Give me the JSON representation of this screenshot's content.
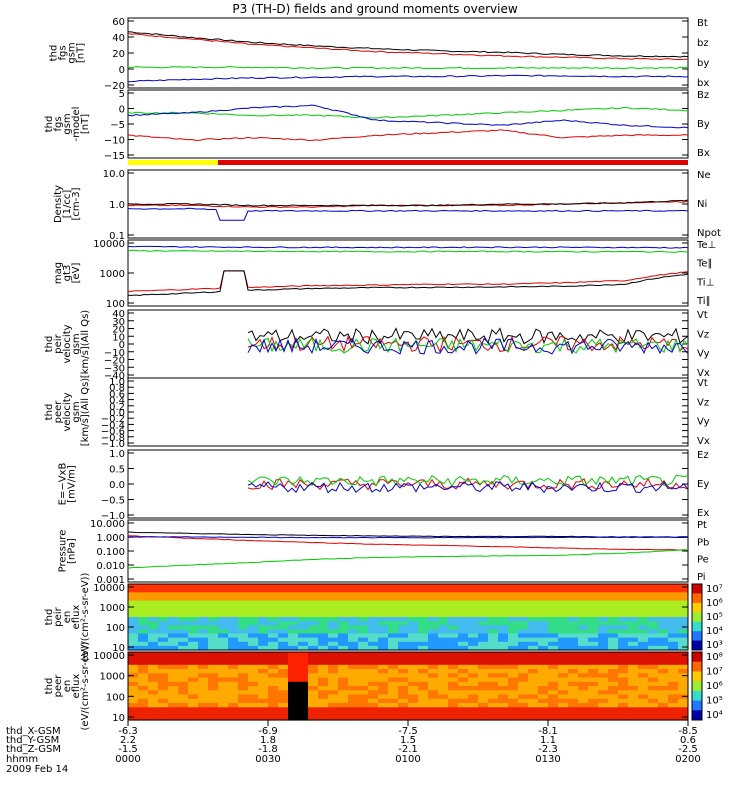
{
  "title": "P3 (TH-D) fields and ground moments overview",
  "colors": {
    "black": "#000000",
    "red": "#e00000",
    "green": "#00cc00",
    "blue": "#0000cc",
    "yellow": "#ffff00"
  },
  "chart_data": [
    {
      "type": "line",
      "ylabel": [
        "thd",
        "fgs",
        "gsm",
        "[nT]"
      ],
      "yticks": [
        "60",
        "40",
        "20",
        "0",
        "−20"
      ],
      "ylim": [
        -25,
        65
      ],
      "series": [
        {
          "name": "Bt",
          "color": "black",
          "values": [
            50,
            42,
            35,
            30,
            26,
            23,
            21,
            18,
            16,
            15
          ]
        },
        {
          "name": "bz",
          "color": "red",
          "values": [
            47,
            40,
            32,
            27,
            22,
            19,
            16,
            14,
            12,
            11
          ]
        },
        {
          "name": "by",
          "color": "green",
          "values": [
            0,
            0,
            0,
            -1,
            -1,
            -1,
            -1,
            -1,
            -1,
            -1
          ]
        },
        {
          "name": "bx",
          "color": "blue",
          "values": [
            -20,
            -17,
            -15,
            -14,
            -13,
            -13,
            -12,
            -12,
            -13,
            -13
          ]
        }
      ]
    },
    {
      "type": "line",
      "ylabel": [
        "thd",
        "fgs",
        "gsm",
        "-model",
        "[nT]"
      ],
      "yticks": [
        "5",
        "0",
        "−5",
        "−10",
        "−15"
      ],
      "ylim": [
        -18,
        7
      ],
      "series": [
        {
          "name": "Bz",
          "color": "red",
          "values": [
            -10,
            -12,
            -11,
            -12,
            -10,
            -9,
            -8,
            -11,
            -10,
            -10
          ]
        },
        {
          "name": "By",
          "color": "green",
          "values": [
            -1,
            -1,
            -2,
            -2,
            -3,
            -2,
            -1,
            0,
            1,
            0
          ]
        },
        {
          "name": "Bx",
          "color": "blue",
          "values": [
            -2,
            -1,
            1,
            2,
            -4,
            -5,
            -6,
            -4,
            -6,
            -7
          ]
        }
      ]
    },
    {
      "type": "line",
      "ylabel": [
        "Density",
        "[1/cc]",
        "[cm-3]"
      ],
      "yticks": [
        "10.0",
        "1.0",
        "0.1"
      ],
      "log": true,
      "ylim": [
        0.1,
        10
      ],
      "series": [
        {
          "name": "Ne",
          "color": "red",
          "values": [
            0.9,
            0.9,
            0.8,
            0.8,
            0.9,
            0.9,
            0.9,
            1.0,
            1.1,
            1.2
          ]
        },
        {
          "name": "Ni",
          "color": "black",
          "values": [
            1.0,
            1.0,
            0.9,
            0.9,
            0.9,
            0.9,
            1.0,
            1.0,
            1.1,
            1.3
          ]
        },
        {
          "name": "Npot",
          "color": "blue",
          "values": [
            0.7,
            0.7,
            0.6,
            0.6,
            0.6,
            0.6,
            0.6,
            0.6,
            0.6,
            0.6
          ]
        }
      ]
    },
    {
      "type": "line",
      "ylabel": [
        "mag",
        "gt3",
        "[eV]"
      ],
      "yticks": [
        "10000",
        "1000",
        "100"
      ],
      "log": true,
      "ylim": [
        100,
        12000
      ],
      "series": [
        {
          "name": "Te⊥",
          "color": "red",
          "values": [
            250,
            300,
            350,
            400,
            420,
            450,
            450,
            500,
            600,
            1200
          ]
        },
        {
          "name": "Te∥",
          "color": "black",
          "values": [
            180,
            220,
            280,
            320,
            340,
            350,
            360,
            380,
            450,
            1000
          ]
        },
        {
          "name": "Ti⊥",
          "color": "blue",
          "values": [
            9000,
            8800,
            8600,
            8500,
            8400,
            8500,
            8600,
            8500,
            8400,
            8200
          ]
        },
        {
          "name": "Ti∥",
          "color": "green",
          "values": [
            6500,
            6300,
            6200,
            6100,
            6000,
            6100,
            6100,
            6000,
            6000,
            6000
          ]
        }
      ]
    },
    {
      "type": "line",
      "ylabel": [
        "thd",
        "peir",
        "velocity",
        "gsm",
        "[km/s](All Qs)"
      ],
      "yticks": [
        "40",
        "30",
        "20",
        "10",
        "0",
        "−10",
        "−20",
        "−30",
        "−40"
      ],
      "ylim": [
        -40,
        40
      ],
      "series": [
        {
          "name": "Vt",
          "color": "black"
        },
        {
          "name": "Vz",
          "color": "red"
        },
        {
          "name": "Vy",
          "color": "green"
        },
        {
          "name": "Vx",
          "color": "blue"
        }
      ]
    },
    {
      "type": "line",
      "ylabel": [
        "thd",
        "peer",
        "velocity",
        "gsm",
        "[km/s](All Qs)"
      ],
      "yticks": [
        "1.0",
        "0.8",
        "0.6",
        "0.4",
        "0.2",
        "0.0",
        "−0.2",
        "−0.4",
        "−0.6",
        "−0.8",
        "−1.0"
      ],
      "ylim": [
        -1,
        1
      ],
      "series": [
        {
          "name": "Vt",
          "color": "black"
        },
        {
          "name": "Vz",
          "color": "red"
        },
        {
          "name": "Vy",
          "color": "green"
        },
        {
          "name": "Vx",
          "color": "blue"
        }
      ]
    },
    {
      "type": "line",
      "ylabel": [
        "E=−VxB",
        "[mV/m]"
      ],
      "yticks": [
        "1.0",
        "0.5",
        "0.0",
        "−0.5",
        "−1.0"
      ],
      "ylim": [
        -1,
        1
      ],
      "series": [
        {
          "name": "Ez",
          "color": "red"
        },
        {
          "name": "Ey",
          "color": "green"
        },
        {
          "name": "Ex",
          "color": "blue"
        }
      ]
    },
    {
      "type": "line",
      "ylabel": [
        "Pressure",
        "[nPa]"
      ],
      "yticks": [
        "10.000",
        "1.000",
        "0.100",
        "0.010",
        "0.001"
      ],
      "log": true,
      "ylim": [
        0.001,
        10
      ],
      "series": [
        {
          "name": "Pt",
          "color": "black",
          "values": [
            2.2,
            1.8,
            1.5,
            1.3,
            1.2,
            1.1,
            1.1,
            1.1,
            1.0,
            1.0
          ]
        },
        {
          "name": "Pb",
          "color": "red",
          "values": [
            1.2,
            0.8,
            0.55,
            0.4,
            0.3,
            0.25,
            0.2,
            0.16,
            0.13,
            0.12
          ]
        },
        {
          "name": "Pe",
          "color": "green",
          "values": [
            0.006,
            0.01,
            0.015,
            0.025,
            0.035,
            0.04,
            0.045,
            0.05,
            0.07,
            0.12
          ]
        },
        {
          "name": "Pi",
          "color": "blue",
          "values": [
            1.0,
            1.0,
            0.95,
            0.9,
            0.9,
            0.9,
            0.9,
            0.95,
            0.95,
            0.95
          ]
        }
      ]
    },
    {
      "type": "heatmap",
      "ylabel": [
        "thd",
        "peir",
        "en",
        "eflux",
        "(eV/(cm²-s-sr-eV))"
      ],
      "yticks": [
        "10000",
        "1000",
        "100",
        "10"
      ],
      "colorbar": [
        "10⁷",
        "10⁶",
        "10⁵",
        "10⁴",
        "10³"
      ]
    },
    {
      "type": "heatmap",
      "ylabel": [
        "thd",
        "peer",
        "en",
        "eflux",
        "(eV/(cm²-s-sr-eV))"
      ],
      "yticks": [
        "10000",
        "1000",
        "100",
        "10"
      ],
      "colorbar": [
        "10⁸",
        "10⁷",
        "10⁶",
        "10⁵",
        "10⁴"
      ]
    }
  ],
  "xaxis": {
    "row_labels": [
      "thd_X-GSM",
      "thd_Y-GSM",
      "thd_Z-GSM",
      "hhmm",
      "2009 Feb 14"
    ],
    "columns": [
      {
        "x": "-6.3",
        "y": "2.2",
        "z": "-1.5",
        "t": "0000"
      },
      {
        "x": "-6.9",
        "y": "1.8",
        "z": "-1.8",
        "t": "0030"
      },
      {
        "x": "-7.5",
        "y": "1.5",
        "z": "-2.1",
        "t": "0100"
      },
      {
        "x": "-8.1",
        "y": "1.1",
        "z": "-2.3",
        "t": "0130"
      },
      {
        "x": "-8.5",
        "y": "0.6",
        "z": "-2.5",
        "t": "0200"
      }
    ]
  }
}
